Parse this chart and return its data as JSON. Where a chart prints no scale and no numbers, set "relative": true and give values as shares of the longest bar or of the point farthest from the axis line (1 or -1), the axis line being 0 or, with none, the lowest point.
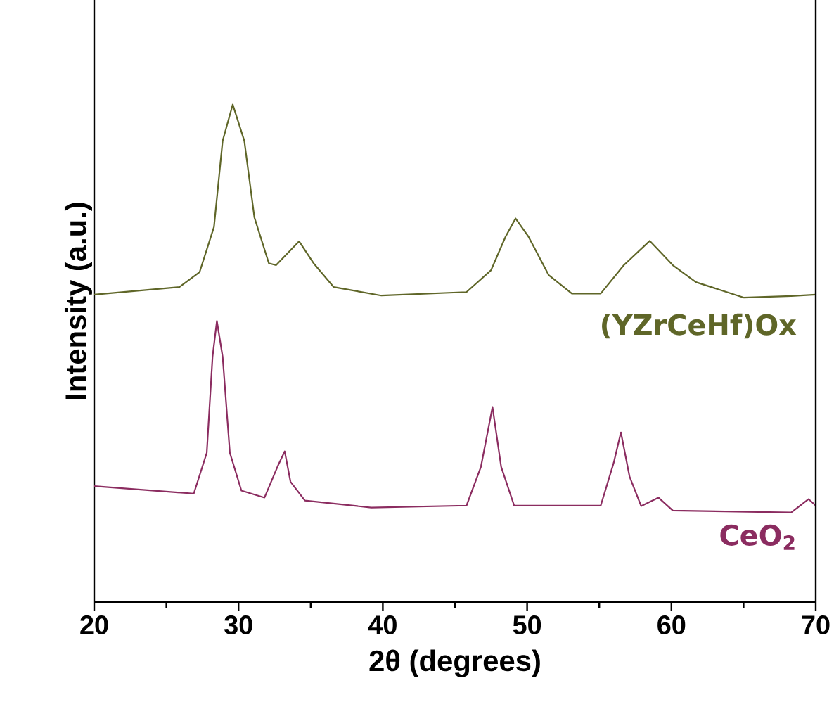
{
  "chart_data": {
    "type": "line",
    "relative": true,
    "xlabel": "2θ (degrees)",
    "ylabel": "Intensity (a.u.)",
    "xlim": [
      20,
      70
    ],
    "xticks": [
      20,
      {
        "value": 25,
        "label": null
      },
      30,
      {
        "value": 35,
        "label": null
      },
      40,
      {
        "value": 45,
        "label": null
      },
      50,
      {
        "value": 55,
        "label": null
      },
      60,
      {
        "value": 65,
        "label": null
      },
      70
    ],
    "grid": false,
    "legend": false,
    "marker": "none",
    "line_style": "solid",
    "series": [
      {
        "name": "(YZrCeHf)Ox",
        "color": "#5f6628",
        "x": [
          20.0,
          25.9,
          27.3,
          28.3,
          28.9,
          29.6,
          30.4,
          31.1,
          32.1,
          32.6,
          34.2,
          35.2,
          36.6,
          39.9,
          45.8,
          47.5,
          48.5,
          49.2,
          50.1,
          51.5,
          53.1,
          55.1,
          56.7,
          58.5,
          60.1,
          61.7,
          65.0,
          68.3,
          70.0
        ],
        "values": [
          0.618,
          0.633,
          0.663,
          0.754,
          0.927,
          1.0,
          0.927,
          0.773,
          0.681,
          0.677,
          0.725,
          0.681,
          0.633,
          0.616,
          0.623,
          0.667,
          0.734,
          0.771,
          0.734,
          0.657,
          0.62,
          0.62,
          0.677,
          0.726,
          0.677,
          0.643,
          0.612,
          0.615,
          0.618
        ]
      },
      {
        "name": "CeO$_{2}$",
        "color": "#8b2c60",
        "x": [
          20.0,
          26.9,
          27.8,
          28.2,
          28.5,
          28.9,
          29.4,
          30.2,
          31.8,
          32.7,
          33.2,
          33.6,
          34.6,
          39.2,
          45.8,
          46.8,
          47.6,
          48.2,
          49.1,
          55.1,
          56.0,
          56.5,
          57.1,
          57.9,
          59.1,
          60.1,
          68.3,
          69.5,
          70.0
        ],
        "values": [
          0.233,
          0.218,
          0.3,
          0.493,
          0.565,
          0.493,
          0.3,
          0.224,
          0.21,
          0.272,
          0.303,
          0.242,
          0.204,
          0.19,
          0.194,
          0.272,
          0.392,
          0.272,
          0.194,
          0.194,
          0.28,
          0.341,
          0.252,
          0.193,
          0.21,
          0.184,
          0.18,
          0.207,
          0.194
        ]
      }
    ]
  }
}
